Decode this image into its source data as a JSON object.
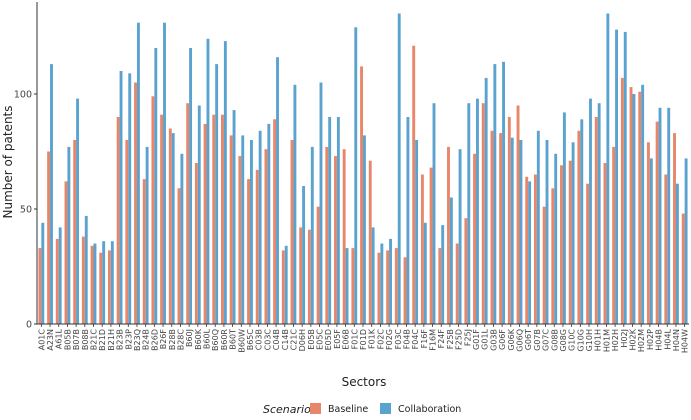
{
  "chart_data": {
    "type": "bar",
    "xlabel": "Sectors",
    "ylabel": "Number of patents",
    "ylim": [
      0,
      140
    ],
    "yticks": [
      0,
      50,
      100
    ],
    "grid": false,
    "legend": {
      "title": "Scenario",
      "position": "bottom"
    },
    "categories": [
      "A01C",
      "A23N",
      "A61L",
      "B05B",
      "B07B",
      "B08B",
      "B21C",
      "B21D",
      "B21H",
      "B23B",
      "B23P",
      "B23Q",
      "B24B",
      "B26D",
      "B26F",
      "B28B",
      "B28C",
      "B60J",
      "B60K",
      "B60L",
      "B60Q",
      "B60R",
      "B60T",
      "B60W",
      "B65C",
      "C03B",
      "C03C",
      "C04B",
      "C14B",
      "C21C",
      "D06H",
      "E05B",
      "E05C",
      "E05D",
      "E05F",
      "E06B",
      "F01C",
      "F01D",
      "F01K",
      "F02C",
      "F02G",
      "F03C",
      "F04B",
      "F04C",
      "F16F",
      "F16M",
      "F24F",
      "F25B",
      "F25D",
      "F25J",
      "G01F",
      "G01L",
      "G03B",
      "G06F",
      "G06K",
      "G06Q",
      "G06T",
      "G07B",
      "G07C",
      "G08B",
      "G08G",
      "G10C",
      "G10G",
      "G10H",
      "H01H",
      "H01M",
      "H02H",
      "H02J",
      "H02K",
      "H02M",
      "H02P",
      "H04B",
      "H04L",
      "H04N",
      "H04W"
    ],
    "series": [
      {
        "name": "Baseline",
        "color": "#E8866A",
        "values": [
          33,
          75,
          37,
          62,
          80,
          38,
          34,
          31,
          32,
          90,
          80,
          105,
          63,
          99,
          91,
          85,
          59,
          96,
          70,
          87,
          91,
          91,
          82,
          73,
          63,
          67,
          76,
          89,
          32,
          80,
          42,
          41,
          51,
          77,
          73,
          76,
          33,
          112,
          71,
          31,
          32,
          33,
          29,
          121,
          65,
          68,
          33,
          77,
          35,
          46,
          74,
          96,
          84,
          83,
          90,
          95,
          64,
          65,
          51,
          59,
          69,
          71,
          84,
          61,
          90,
          70,
          77,
          107,
          103,
          101,
          79,
          88,
          65,
          83,
          48
        ],
        "_note": ""
      },
      {
        "name": "Collaboration",
        "color": "#5BA3CF",
        "values": [
          44,
          113,
          42,
          77,
          98,
          47,
          35,
          36,
          36,
          110,
          109,
          131,
          77,
          120,
          131,
          83,
          74,
          120,
          95,
          124,
          113,
          123,
          93,
          82,
          80,
          84,
          87,
          116,
          34,
          104,
          60,
          77,
          105,
          90,
          90,
          33,
          129,
          82,
          42,
          35,
          37,
          135,
          90,
          80,
          44,
          96,
          43,
          55,
          76,
          96,
          98,
          107,
          113,
          114,
          81,
          80,
          62,
          84,
          80,
          74,
          92,
          79,
          89,
          98,
          96,
          135,
          128,
          127,
          100,
          104,
          72,
          94,
          94,
          61,
          72
        ],
        "_note": ""
      }
    ]
  }
}
